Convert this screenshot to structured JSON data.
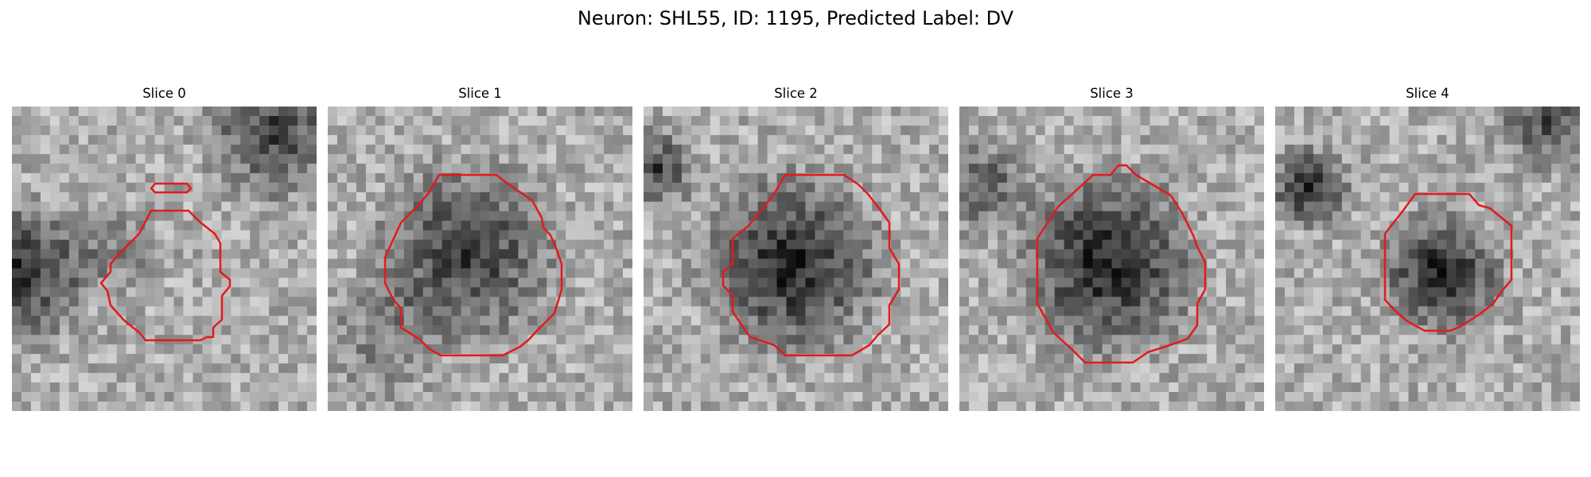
{
  "figure": {
    "title": "Neuron: SHL55, ID: 1195, Predicted Label: DV"
  },
  "panels": [
    {
      "title": "Slice 0"
    },
    {
      "title": "Slice 1"
    },
    {
      "title": "Slice 2"
    },
    {
      "title": "Slice 3"
    },
    {
      "title": "Slice 4"
    }
  ],
  "colors": {
    "contour": "#e31a1c",
    "background": "#ffffff"
  }
}
